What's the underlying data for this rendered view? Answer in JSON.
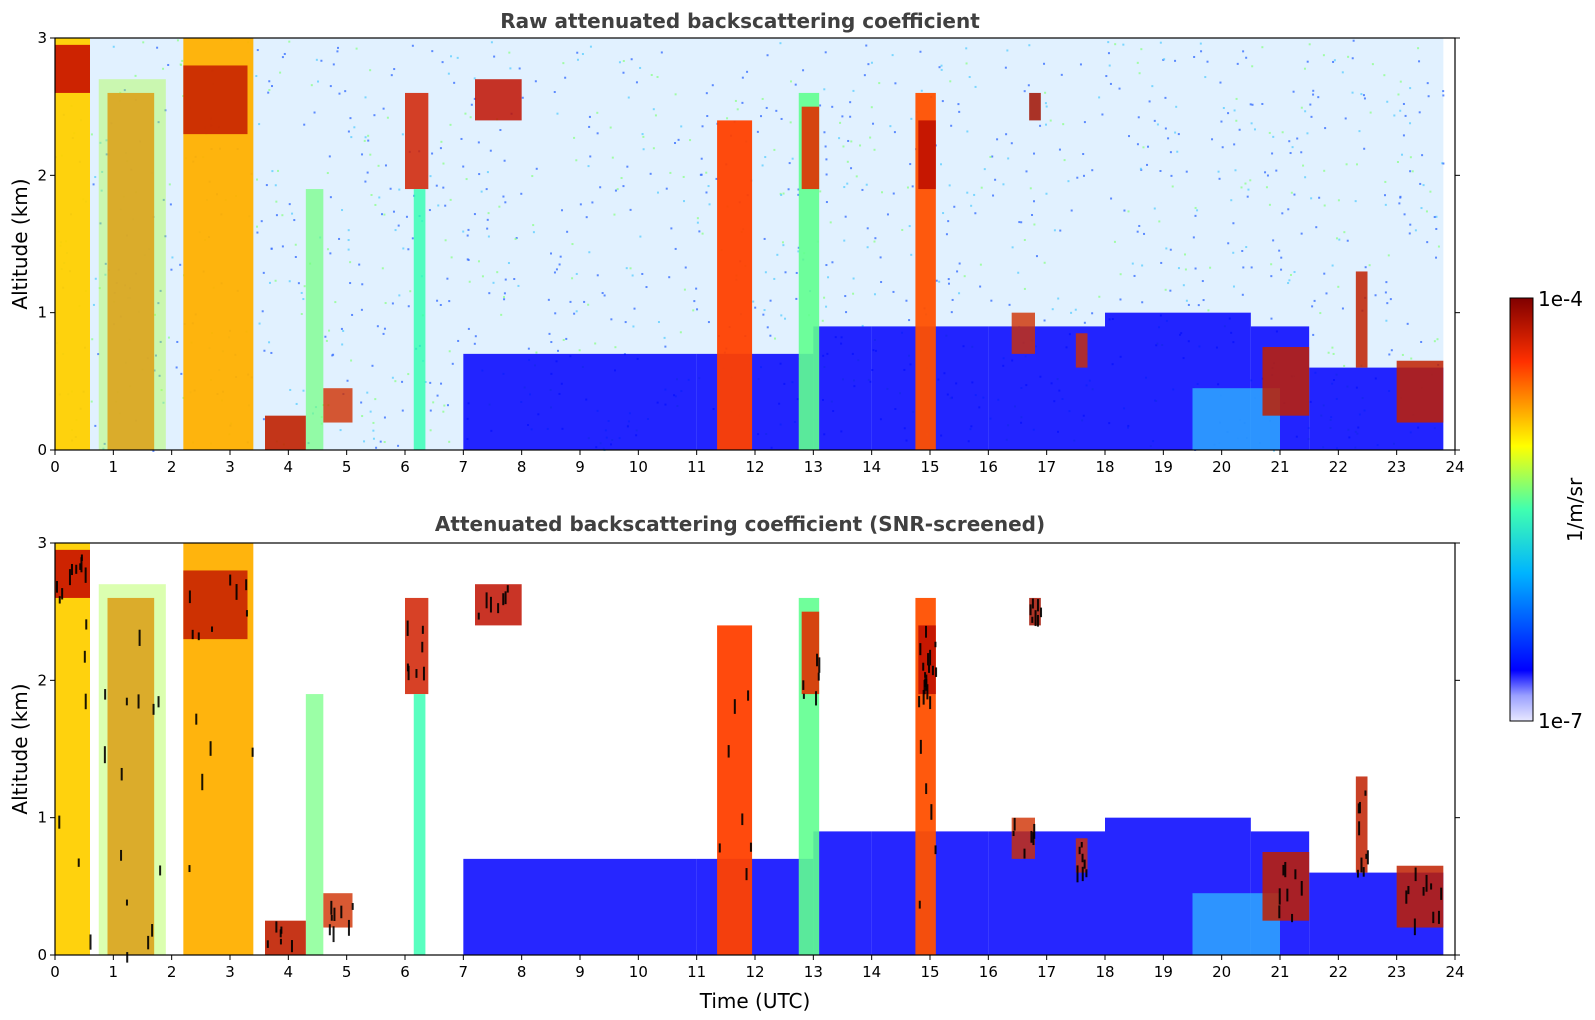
{
  "chart_data": [
    {
      "type": "heatmap",
      "title": "Raw attenuated backscattering coefficient",
      "ylabel": "Altitude (km)",
      "xlabel": "",
      "xlim": [
        0,
        24
      ],
      "ylim": [
        0,
        3
      ],
      "xticks": [
        "0",
        "1",
        "2",
        "3",
        "4",
        "5",
        "6",
        "7",
        "8",
        "9",
        "10",
        "11",
        "12",
        "13",
        "14",
        "15",
        "16",
        "17",
        "18",
        "19",
        "20",
        "21",
        "22",
        "23",
        "24"
      ],
      "yticks": [
        "0",
        "1",
        "2",
        "3"
      ],
      "screened": false
    },
    {
      "type": "heatmap",
      "title": "Attenuated backscattering coefficient (SNR-screened)",
      "ylabel": "Altitude (km)",
      "xlabel": "Time (UTC)",
      "xlim": [
        0,
        24
      ],
      "ylim": [
        0,
        3
      ],
      "xticks": [
        "0",
        "1",
        "2",
        "3",
        "4",
        "5",
        "6",
        "7",
        "8",
        "9",
        "10",
        "11",
        "12",
        "13",
        "14",
        "15",
        "16",
        "17",
        "18",
        "19",
        "20",
        "21",
        "22",
        "23",
        "24"
      ],
      "yticks": [
        "0",
        "1",
        "2",
        "3"
      ],
      "screened": true
    }
  ],
  "colorbar": {
    "label": "1/m/sr",
    "max_label": "1e-4",
    "min_label": "1e-7",
    "scale": "log"
  },
  "colors": {
    "low": "#0000ff",
    "mid": "#00c8ff",
    "high": "#ffff00",
    "max": "#800000",
    "noise": "#4a8cff",
    "screened_black": "#000000"
  }
}
